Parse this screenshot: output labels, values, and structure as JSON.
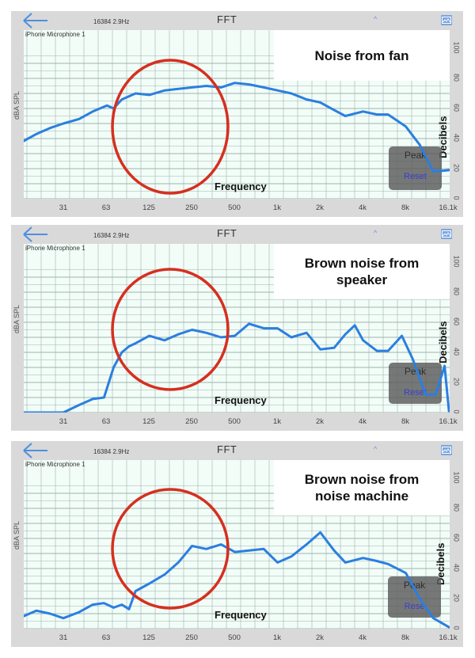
{
  "colors": {
    "panel_bg": "#d9d9d9",
    "plot_bg": "#f2fdf8",
    "grid": "#9fb3ad",
    "curve": "#2a7fe0",
    "circle": "#d62f1f",
    "back_arrow": "#4d8fe0",
    "reset_text": "#3d3dcc"
  },
  "common": {
    "fft_size": "16384  2.9Hz",
    "title": "FFT",
    "caret": "^",
    "device": "iPhone Microphone 1",
    "y_axis_left_label": "dBA SPL",
    "x_axis_label": "Frequency",
    "y_axis_right_label": "Decibels",
    "peak_label": "Peak",
    "reset_label": "Reset",
    "x_ticks": [
      "31",
      "63",
      "125",
      "250",
      "500",
      "1k",
      "2k",
      "4k",
      "8k",
      "16.1k"
    ],
    "y_ticks": [
      "0",
      "20",
      "40",
      "60",
      "80",
      "100"
    ]
  },
  "panels": [
    {
      "annotation": "Noise from fan",
      "reset_label": "Reset",
      "peak_label": "Peak"
    },
    {
      "annotation": "Brown noise from speaker",
      "reset_label": "Reset",
      "peak_label": "Peak"
    },
    {
      "annotation": "Brown noise from noise machine",
      "reset_label": "Rese",
      "peak_label": "Peak"
    }
  ],
  "chart_data": [
    {
      "type": "line",
      "title": "Noise from fan",
      "xlabel": "Frequency",
      "ylabel": "Decibels (dBA SPL)",
      "x_scale": "log2 (octaves)",
      "x_tick_labels": [
        "31",
        "63",
        "125",
        "250",
        "500",
        "1k",
        "2k",
        "4k",
        "8k",
        "16.1k"
      ],
      "ylim": [
        0,
        100
      ],
      "grid": true,
      "series": [
        {
          "name": "FFT spectrum",
          "x_hz": [
            16,
            20,
            25,
            31,
            40,
            50,
            63,
            70,
            80,
            100,
            125,
            160,
            200,
            250,
            315,
            400,
            500,
            630,
            800,
            1000,
            1250,
            1600,
            2000,
            2500,
            3000,
            4000,
            5000,
            6000,
            8000,
            10000,
            12500,
            16100
          ],
          "values": [
            38,
            43,
            47,
            50,
            53,
            58,
            62,
            60,
            66,
            70,
            69,
            72,
            73,
            74,
            75,
            74,
            77,
            76,
            74,
            72,
            70,
            66,
            64,
            59,
            55,
            58,
            56,
            56,
            48,
            36,
            18,
            19
          ]
        }
      ],
      "annotations": [
        "red circle around 63–500 Hz region",
        "Peak / Reset overlay box"
      ]
    },
    {
      "type": "line",
      "title": "Brown noise from speaker",
      "xlabel": "Frequency",
      "ylabel": "Decibels (dBA SPL)",
      "x_scale": "log2 (octaves)",
      "x_tick_labels": [
        "31",
        "63",
        "125",
        "250",
        "500",
        "1k",
        "2k",
        "4k",
        "8k",
        "16.1k"
      ],
      "ylim": [
        0,
        100
      ],
      "grid": true,
      "series": [
        {
          "name": "FFT spectrum",
          "x_hz": [
            16,
            20,
            25,
            31,
            40,
            50,
            60,
            70,
            80,
            90,
            100,
            125,
            160,
            200,
            250,
            315,
            400,
            500,
            630,
            800,
            1000,
            1250,
            1600,
            2000,
            2500,
            3000,
            3500,
            4000,
            5000,
            6000,
            7500,
            9000,
            11000,
            13000,
            15000,
            16100
          ],
          "values": [
            0,
            0,
            0,
            0,
            5,
            9,
            10,
            30,
            40,
            44,
            46,
            51,
            48,
            52,
            55,
            53,
            50,
            51,
            59,
            56,
            56,
            50,
            53,
            42,
            43,
            52,
            58,
            48,
            41,
            41,
            51,
            35,
            12,
            12,
            31,
            1
          ]
        }
      ],
      "annotations": [
        "red circle around 63–500 Hz region",
        "Peak / Reset overlay box"
      ]
    },
    {
      "type": "line",
      "title": "Brown noise from noise machine",
      "xlabel": "Frequency",
      "ylabel": "Decibels (dBA SPL)",
      "x_scale": "log2 (octaves)",
      "x_tick_labels": [
        "31",
        "63",
        "125",
        "250",
        "500",
        "1k",
        "2k",
        "4k",
        "8k",
        "16.1k"
      ],
      "ylim": [
        0,
        100
      ],
      "grid": true,
      "series": [
        {
          "name": "FFT spectrum",
          "x_hz": [
            16,
            20,
            25,
            31,
            40,
            50,
            60,
            70,
            80,
            90,
            100,
            125,
            160,
            200,
            250,
            315,
            400,
            500,
            630,
            800,
            1000,
            1250,
            1600,
            2000,
            2500,
            3000,
            4000,
            5000,
            6000,
            8000,
            10000,
            12500,
            16100
          ],
          "values": [
            8,
            12,
            10,
            7,
            11,
            16,
            17,
            14,
            16,
            13,
            25,
            30,
            36,
            44,
            55,
            53,
            56,
            51,
            52,
            53,
            44,
            48,
            56,
            64,
            52,
            44,
            47,
            45,
            43,
            37,
            20,
            7,
            1
          ]
        }
      ],
      "annotations": [
        "red circle around 63–500 Hz region",
        "Peak / Reset overlay box"
      ]
    }
  ]
}
